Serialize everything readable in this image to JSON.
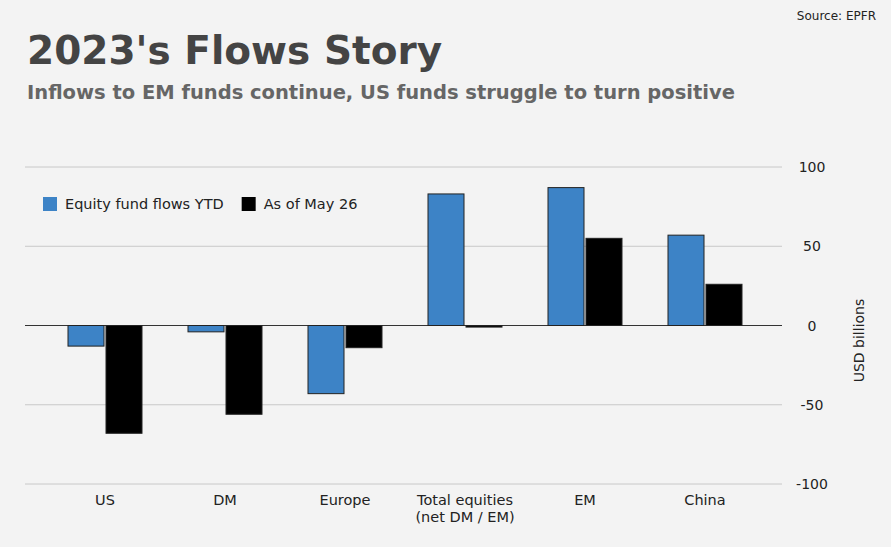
{
  "chart_data": {
    "type": "bar",
    "title": "2023's Flows Story",
    "subtitle": "Inflows to EM funds continue, US funds struggle to turn positive",
    "source": "Source: EPFR",
    "y_label": "USD billions",
    "categories": [
      "US",
      "DM",
      "Europe",
      "Total equities\n(net DM / EM)",
      "EM",
      "China"
    ],
    "series": [
      {
        "name": "Equity fund flows YTD",
        "color": "#3d83c6",
        "values": [
          -13,
          -4,
          -43,
          83,
          87,
          57
        ]
      },
      {
        "name": "As of May 26",
        "color": "#000000",
        "values": [
          -68,
          -56,
          -14,
          -1,
          55,
          26
        ]
      }
    ],
    "ylim": [
      -100,
      100
    ],
    "yticks": [
      -100,
      -50,
      0,
      50,
      100
    ],
    "grid": true,
    "legend": "top-left"
  }
}
